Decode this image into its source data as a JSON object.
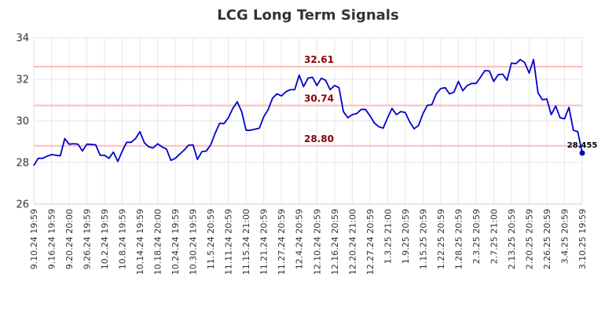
{
  "chart_data": {
    "type": "line",
    "title": "LCG Long Term Signals",
    "xlabel": "",
    "ylabel": "",
    "ylim": [
      26,
      34
    ],
    "y_ticks": [
      26,
      28,
      30,
      32,
      34
    ],
    "grid": true,
    "x_tick_labels": [
      "9.10.24 19:59",
      "9.16.24 19:59",
      "9.20.24 20:00",
      "9.26.24 19:59",
      "10.2.24 19:59",
      "10.8.24 19:59",
      "10.14.24 19:59",
      "10.18.24 20:00",
      "10.24.24 19:59",
      "10.30.24 19:59",
      "11.5.24 20:59",
      "11.11.24 20:59",
      "11.15.24 21:00",
      "11.21.24 20:59",
      "11.27.24 20:59",
      "12.4.24 20:59",
      "12.10.24 20:59",
      "12.16.24 20:59",
      "12.20.24 21:00",
      "12.27.24 20:59",
      "1.3.25 21:00",
      "1.9.25 20:59",
      "1.15.25 20:59",
      "1.22.25 20:59",
      "1.28.25 20:59",
      "2.3.25 20:59",
      "2.7.25 21:00",
      "2.13.25 20:59",
      "2.20.25 20:59",
      "2.26.25 20:59",
      "3.4.25 20:59",
      "3.10.25 19:59"
    ],
    "series": [
      {
        "color": "#0000cc",
        "values": [
          27.85,
          28.2,
          28.2,
          28.3,
          28.38,
          28.35,
          28.32,
          29.15,
          28.88,
          28.9,
          28.88,
          28.55,
          28.88,
          28.87,
          28.85,
          28.35,
          28.35,
          28.2,
          28.5,
          28.05,
          28.55,
          28.97,
          28.97,
          29.15,
          29.48,
          28.95,
          28.75,
          28.7,
          28.9,
          28.75,
          28.65,
          28.1,
          28.2,
          28.4,
          28.6,
          28.83,
          28.85,
          28.15,
          28.52,
          28.55,
          28.85,
          29.4,
          29.88,
          29.87,
          30.15,
          30.6,
          30.92,
          30.45,
          29.55,
          29.55,
          29.6,
          29.65,
          30.2,
          30.55,
          31.1,
          31.3,
          31.2,
          31.4,
          31.5,
          31.5,
          32.2,
          31.65,
          32.05,
          32.1,
          31.7,
          32.05,
          31.95,
          31.5,
          31.7,
          31.6,
          30.45,
          30.15,
          30.3,
          30.35,
          30.55,
          30.55,
          30.25,
          29.9,
          29.72,
          29.65,
          30.15,
          30.6,
          30.3,
          30.45,
          30.4,
          29.95,
          29.62,
          29.78,
          30.35,
          30.75,
          30.78,
          31.3,
          31.55,
          31.6,
          31.3,
          31.38,
          31.9,
          31.45,
          31.7,
          31.8,
          31.8,
          32.1,
          32.42,
          32.4,
          31.9,
          32.22,
          32.25,
          31.95,
          32.78,
          32.75,
          32.95,
          32.8,
          32.3,
          32.95,
          31.35,
          31.02,
          31.05,
          30.3,
          30.72,
          30.15,
          30.1,
          30.65,
          29.55,
          29.48,
          28.455
        ]
      }
    ],
    "reference_lines": [
      {
        "value": 32.61,
        "label": "32.61"
      },
      {
        "value": 30.74,
        "label": "30.74"
      },
      {
        "value": 28.8,
        "label": "28.80"
      }
    ],
    "last_value_label": "28.455"
  }
}
